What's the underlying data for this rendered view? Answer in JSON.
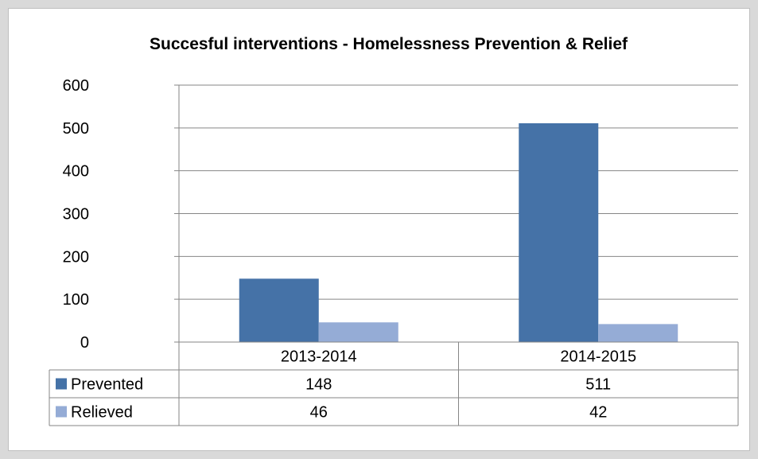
{
  "chart_data": {
    "type": "bar",
    "title": "Succesful interventions - Homelessness Prevention & Relief",
    "categories": [
      "2013-2014",
      "2014-2015"
    ],
    "series": [
      {
        "name": "Prevented",
        "values": [
          148,
          511
        ],
        "color": "#4572a7"
      },
      {
        "name": "Relieved",
        "values": [
          46,
          42
        ],
        "color": "#95acd6"
      }
    ],
    "ylim": [
      0,
      600
    ],
    "yticks": [
      0,
      100,
      200,
      300,
      400,
      500,
      600
    ],
    "grid": true,
    "legend": "data-table",
    "data_table": true
  }
}
